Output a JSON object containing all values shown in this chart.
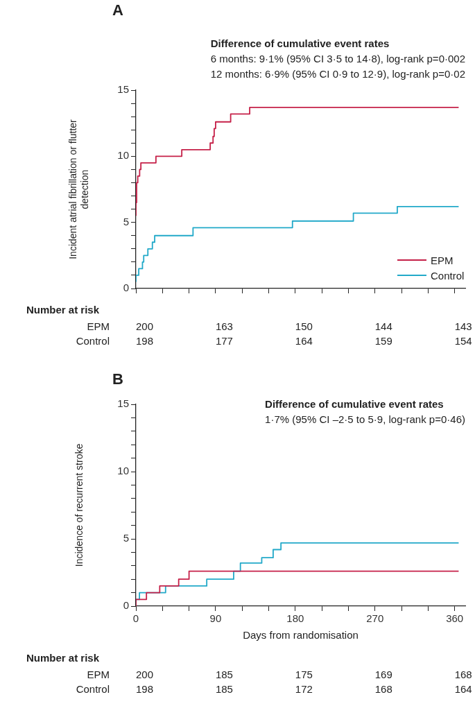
{
  "chart_data": [
    {
      "type": "step",
      "title": "A",
      "subtitle": "Difference of cumulative event rates",
      "ylabel": "Incident atrial fibrillation or flutter detection",
      "xlim": [
        0,
        372
      ],
      "xticks": [
        {
          "value": 0,
          "label": null
        },
        {
          "value": 30,
          "label": null
        },
        {
          "value": 60,
          "label": null
        },
        {
          "value": 90,
          "label": null
        },
        {
          "value": 120,
          "label": null
        },
        {
          "value": 150,
          "label": null
        },
        {
          "value": 180,
          "label": null
        },
        {
          "value": 210,
          "label": null
        },
        {
          "value": 240,
          "label": null
        },
        {
          "value": 270,
          "label": null
        },
        {
          "value": 300,
          "label": null
        },
        {
          "value": 330,
          "label": null
        },
        {
          "value": 360,
          "label": null
        }
      ],
      "ylim": [
        0,
        15
      ],
      "yticks": [
        0,
        {
          "value": 1,
          "label": null
        },
        {
          "value": 2,
          "label": null
        },
        {
          "value": 3,
          "label": null
        },
        {
          "value": 4,
          "label": null
        },
        5,
        {
          "value": 6,
          "label": null
        },
        {
          "value": 7,
          "label": null
        },
        {
          "value": 8,
          "label": null
        },
        {
          "value": 9,
          "label": null
        },
        10,
        {
          "value": 11,
          "label": null
        },
        {
          "value": 12,
          "label": null
        },
        {
          "value": 13,
          "label": null
        },
        {
          "value": 14,
          "label": null
        },
        15
      ],
      "tick_labels": "y",
      "legend": "bottom right",
      "grid": false,
      "marker": "none",
      "line_style": "solid",
      "series": [
        {
          "name": "EPM",
          "color": "#c52048",
          "x": [
            0,
            0.8,
            2.1,
            4.2,
            5.6,
            22.6,
            51.8,
            83.9,
            87.1,
            88.4,
            90,
            107,
            128.5,
            179.5,
            364.5
          ],
          "values": [
            5.5,
            6.5,
            8,
            8.5,
            9,
            9.5,
            10,
            10.5,
            11,
            11.5,
            12.1,
            12.6,
            13.2,
            13.7,
            13.7
          ]
        },
        {
          "name": "Control",
          "color": "#22a9c9",
          "x": [
            0,
            3.2,
            7.4,
            8.8,
            13.5,
            18.6,
            21.2,
            64.5,
            176.8,
            245.6,
            295.2,
            360.5,
            364.5
          ],
          "values": [
            0.5,
            1,
            1.5,
            2,
            2.5,
            3,
            3.5,
            4,
            4.6,
            5.1,
            5.7,
            6.2,
            6.2
          ]
        }
      ],
      "annotations": [
        "6 months: 9·1% (95% CI 3·5 to 14·8), log-rank p=0·002",
        "12 months: 6·9% (95% CI 0·9 to 12·9), log-rank p=0·02",
        "Number at risk",
        "EPM",
        "200",
        "163",
        "150",
        "144",
        "143",
        "Control",
        "198",
        "177",
        "164",
        "159",
        "154"
      ]
    },
    {
      "type": "step",
      "title": "B",
      "subtitle": "Difference of cumulative event rates",
      "ylabel": "Incidence of recurrent stroke",
      "xlabel": "Days from randomisation",
      "xlim": [
        0,
        372
      ],
      "xticks": [
        0,
        {
          "value": 30,
          "label": null
        },
        {
          "value": 60,
          "label": null
        },
        90,
        {
          "value": 120,
          "label": null
        },
        {
          "value": 150,
          "label": null
        },
        180,
        {
          "value": 210,
          "label": null
        },
        {
          "value": 240,
          "label": null
        },
        270,
        {
          "value": 300,
          "label": null
        },
        {
          "value": 330,
          "label": null
        },
        360
      ],
      "ylim": [
        0,
        15
      ],
      "yticks": [
        0,
        {
          "value": 1,
          "label": null
        },
        {
          "value": 2,
          "label": null
        },
        {
          "value": 3,
          "label": null
        },
        {
          "value": 4,
          "label": null
        },
        5,
        {
          "value": 6,
          "label": null
        },
        {
          "value": 7,
          "label": null
        },
        {
          "value": 8,
          "label": null
        },
        {
          "value": 9,
          "label": null
        },
        10,
        {
          "value": 11,
          "label": null
        },
        {
          "value": 12,
          "label": null
        },
        {
          "value": 13,
          "label": null
        },
        {
          "value": 14,
          "label": null
        },
        15
      ],
      "grid": false,
      "marker": "none",
      "line_style": "solid",
      "series": [
        {
          "color": "#c52048",
          "x": [
            0,
            11.9,
            26.9,
            48.3,
            60,
            260.2,
            364.5
          ],
          "values": [
            0,
            0.5,
            1,
            1.5,
            2,
            2.6,
            2.6
          ]
        },
        {
          "color": "#22a9c9",
          "x": [
            0,
            4,
            33.5,
            80,
            110.4,
            118,
            142.1,
            155,
            163.8,
            338.9,
            364.5
          ],
          "values": [
            0,
            0.5,
            1,
            1.5,
            2,
            2.6,
            3.2,
            3.6,
            4.2,
            4.7,
            4.7
          ]
        }
      ],
      "annotations": [
        "1·7% (95% CI –2·5 to 5·9, log-rank p=0·46)",
        "Number at risk",
        "EPM",
        "200",
        "185",
        "175",
        "169",
        "168",
        "Control",
        "198",
        "185",
        "172",
        "168",
        "164"
      ]
    }
  ]
}
